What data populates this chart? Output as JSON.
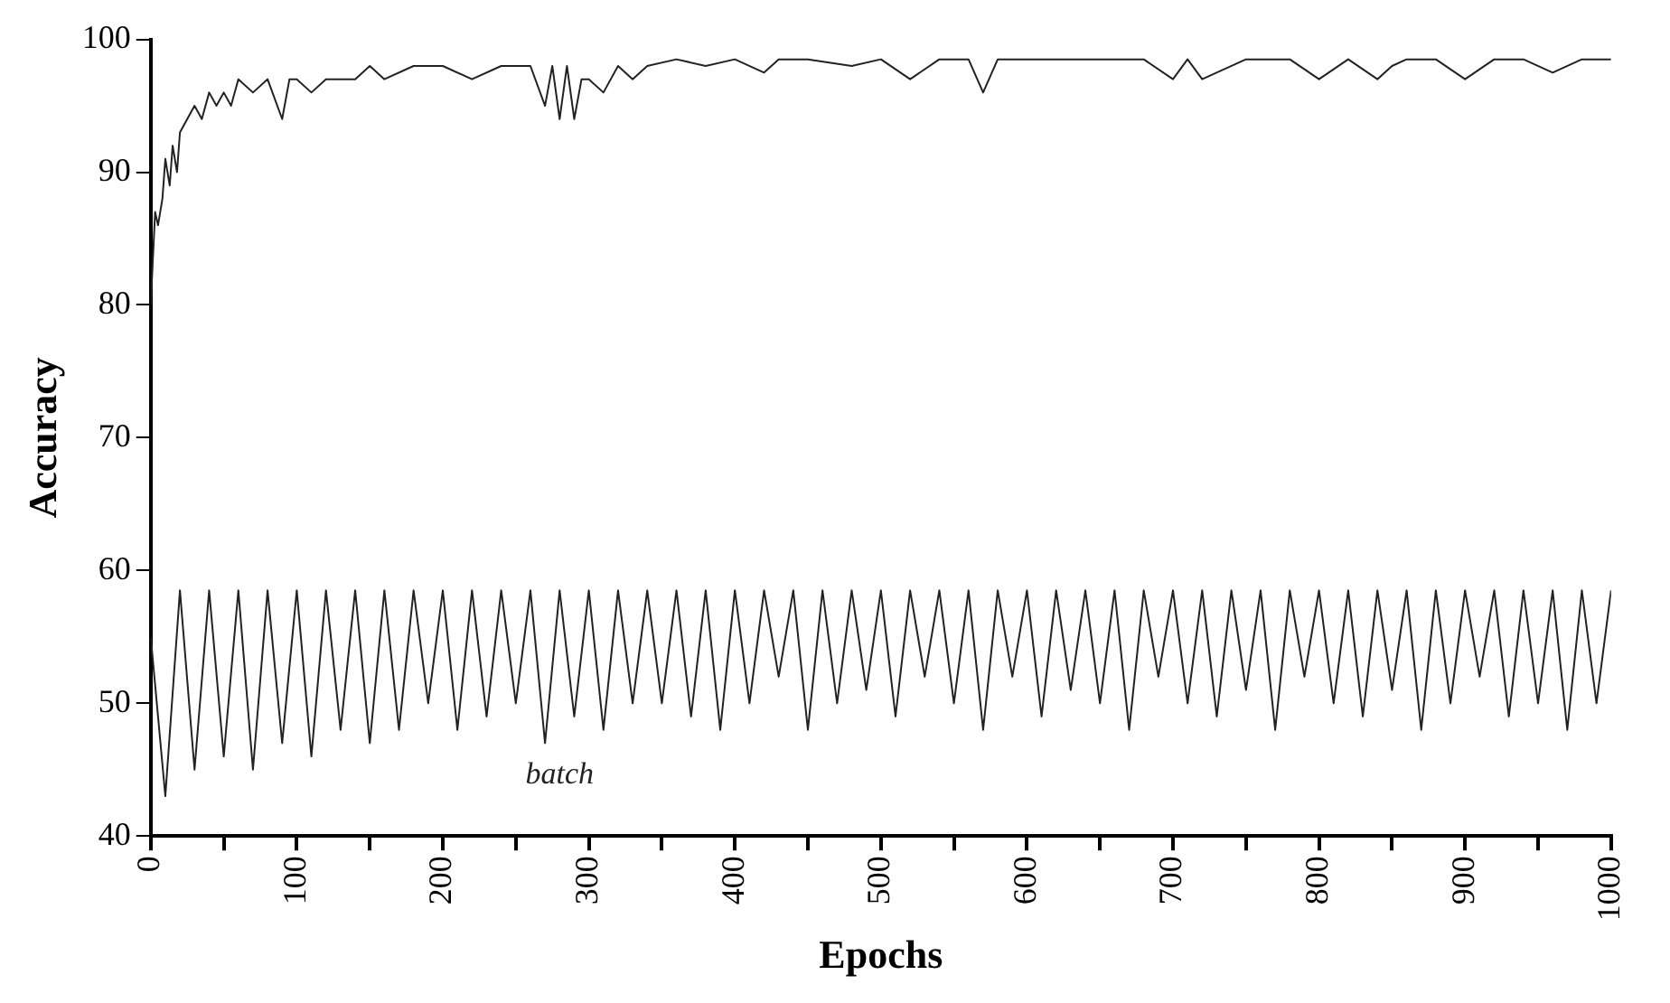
{
  "chart_data": {
    "type": "line",
    "xlabel": "Epochs",
    "ylabel": "Accuracy",
    "xlim": [
      0,
      1000
    ],
    "ylim": [
      40,
      100
    ],
    "xticks": [
      0,
      {
        "value": 50,
        "label": null
      },
      100,
      {
        "value": 150,
        "label": null
      },
      200,
      {
        "value": 250,
        "label": null
      },
      300,
      {
        "value": 350,
        "label": null
      },
      400,
      {
        "value": 450,
        "label": null
      },
      500,
      {
        "value": 550,
        "label": null
      },
      600,
      {
        "value": 650,
        "label": null
      },
      700,
      {
        "value": 750,
        "label": null
      },
      800,
      {
        "value": 850,
        "label": null
      },
      900,
      {
        "value": 950,
        "label": null
      },
      1000
    ],
    "yticks": [
      40,
      50,
      60,
      70,
      80,
      90,
      100
    ],
    "grid": false,
    "legend": false,
    "marker": "none",
    "line_style": "solid",
    "series": [
      {
        "color": "#222222",
        "x": [
          0,
          3,
          5,
          8,
          10,
          13,
          15,
          18,
          20,
          25,
          30,
          35,
          40,
          45,
          50,
          55,
          60,
          70,
          80,
          90,
          95,
          100,
          110,
          120,
          140,
          150,
          160,
          180,
          200,
          220,
          240,
          260,
          270,
          275,
          280,
          285,
          290,
          295,
          300,
          310,
          320,
          330,
          340,
          360,
          380,
          400,
          420,
          430,
          450,
          480,
          500,
          520,
          540,
          560,
          570,
          580,
          600,
          650,
          680,
          700,
          710,
          720,
          750,
          780,
          800,
          820,
          840,
          850,
          860,
          880,
          900,
          920,
          940,
          960,
          980,
          1000
        ],
        "values": [
          80,
          87,
          86,
          88,
          91,
          89,
          92,
          90,
          93,
          94,
          95,
          94,
          96,
          95,
          96,
          95,
          97,
          96,
          97,
          94,
          97,
          97,
          96,
          97,
          97,
          98,
          97,
          98,
          98,
          97,
          98,
          98,
          95,
          98,
          94,
          98,
          94,
          97,
          97,
          96,
          98,
          97,
          98,
          98.5,
          98,
          98.5,
          97.5,
          98.5,
          98.5,
          98,
          98.5,
          97,
          98.5,
          98.5,
          96,
          98.5,
          98.5,
          98.5,
          98.5,
          97,
          98.5,
          97,
          98.5,
          98.5,
          97,
          98.5,
          97,
          98,
          98.5,
          98.5,
          97,
          98.5,
          98.5,
          97.5,
          98.5,
          98.5
        ]
      },
      {
        "name": "batch",
        "color": "#222222",
        "x": [
          0,
          10,
          20,
          30,
          40,
          50,
          60,
          70,
          80,
          90,
          100,
          110,
          120,
          130,
          140,
          150,
          160,
          170,
          180,
          190,
          200,
          210,
          220,
          230,
          240,
          250,
          260,
          270,
          280,
          290,
          300,
          310,
          320,
          330,
          340,
          350,
          360,
          370,
          380,
          390,
          400,
          410,
          420,
          430,
          440,
          450,
          460,
          470,
          480,
          490,
          500,
          510,
          520,
          530,
          540,
          550,
          560,
          570,
          580,
          590,
          600,
          610,
          620,
          630,
          640,
          650,
          660,
          670,
          680,
          690,
          700,
          710,
          720,
          730,
          740,
          750,
          760,
          770,
          780,
          790,
          800,
          810,
          820,
          830,
          840,
          850,
          860,
          870,
          880,
          890,
          900,
          910,
          920,
          930,
          940,
          950,
          960,
          970,
          980,
          990,
          1000
        ],
        "values": [
          55,
          43,
          58.5,
          45,
          58.5,
          46,
          58.5,
          45,
          58.5,
          47,
          58.5,
          46,
          58.5,
          48,
          58.5,
          47,
          58.5,
          48,
          58.5,
          50,
          58.5,
          48,
          58.5,
          49,
          58.5,
          50,
          58.5,
          47,
          58.5,
          49,
          58.5,
          48,
          58.5,
          50,
          58.5,
          50,
          58.5,
          49,
          58.5,
          48,
          58.5,
          50,
          58.5,
          52,
          58.5,
          48,
          58.5,
          50,
          58.5,
          51,
          58.5,
          49,
          58.5,
          52,
          58.5,
          50,
          58.5,
          48,
          58.5,
          52,
          58.5,
          49,
          58.5,
          51,
          58.5,
          50,
          58.5,
          48,
          58.5,
          52,
          58.5,
          50,
          58.5,
          49,
          58.5,
          51,
          58.5,
          48,
          58.5,
          52,
          58.5,
          50,
          58.5,
          49,
          58.5,
          51,
          58.5,
          48,
          58.5,
          50,
          58.5,
          52,
          58.5,
          49,
          58.5,
          50,
          58.5,
          48,
          58.5,
          50,
          58.5
        ]
      }
    ]
  }
}
